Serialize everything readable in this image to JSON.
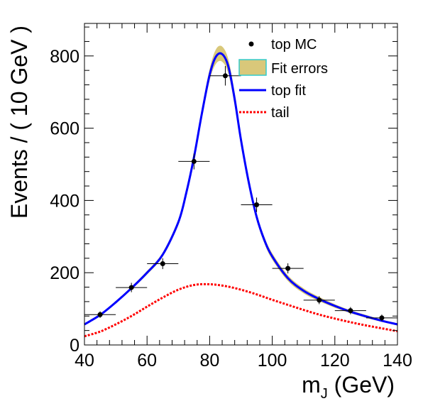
{
  "chart_data": {
    "type": "scatter",
    "title": "",
    "xlabel": "m",
    "xlabel_sub": "J",
    "xlabel_unit": " (GeV)",
    "ylabel": "Events / ( 10 GeV )",
    "xlim": [
      40,
      140
    ],
    "ylim": [
      0,
      890
    ],
    "x_ticks": [
      40,
      60,
      80,
      100,
      120,
      140
    ],
    "y_ticks": [
      0,
      200,
      400,
      600,
      800
    ],
    "grid": false,
    "legend_position": "top-right",
    "legend": [
      {
        "label": "top MC",
        "kind": "marker",
        "color": "#000000"
      },
      {
        "label": "Fit errors",
        "kind": "band",
        "color": "#d9c87a",
        "edge": "#33cccc"
      },
      {
        "label": "top fit",
        "kind": "line",
        "color": "#0000ff"
      },
      {
        "label": "tail",
        "kind": "dashed",
        "color": "#ff0000"
      }
    ],
    "series": [
      {
        "name": "top MC",
        "kind": "points",
        "x": [
          45,
          55,
          65,
          75,
          85,
          95,
          105,
          115,
          125,
          135
        ],
        "y": [
          84,
          159,
          225,
          508,
          745,
          388,
          212,
          124,
          95,
          75
        ],
        "xerr": 5,
        "yerr": [
          9,
          13,
          15,
          22,
          27,
          20,
          14,
          11,
          10,
          9
        ]
      },
      {
        "name": "top fit",
        "kind": "line",
        "x": [
          40,
          45,
          50,
          55,
          60,
          65,
          70,
          72.5,
          75,
          77.5,
          80,
          82,
          84,
          86,
          88,
          90,
          92.5,
          95,
          97.5,
          100,
          105,
          110,
          115,
          120,
          125,
          130,
          135,
          140
        ],
        "y": [
          57,
          83,
          118,
          157,
          200,
          250,
          340,
          420,
          520,
          640,
          748,
          798,
          805,
          770,
          680,
          568,
          450,
          355,
          290,
          245,
          185,
          150,
          127,
          108,
          92,
          79,
          67,
          57
        ]
      },
      {
        "name": "Fit errors",
        "kind": "band",
        "x": [
          40,
          45,
          50,
          55,
          60,
          65,
          70,
          72.5,
          75,
          77.5,
          80,
          82,
          84,
          86,
          88,
          90,
          92.5,
          95,
          97.5,
          100,
          105,
          110,
          115,
          120,
          125,
          130,
          135,
          140
        ],
        "low": [
          55,
          81,
          115,
          153,
          195,
          244,
          332,
          410,
          508,
          626,
          732,
          778,
          784,
          750,
          662,
          553,
          438,
          345,
          281,
          236,
          177,
          143,
          121,
          103,
          88,
          75,
          64,
          54
        ],
        "high": [
          59,
          85,
          121,
          161,
          205,
          256,
          348,
          430,
          532,
          654,
          764,
          818,
          826,
          790,
          698,
          583,
          462,
          365,
          299,
          254,
          193,
          157,
          133,
          113,
          96,
          83,
          70,
          60
        ]
      },
      {
        "name": "tail",
        "kind": "dashed",
        "x": [
          40,
          45,
          50,
          55,
          60,
          65,
          70,
          75,
          80,
          85,
          90,
          95,
          100,
          105,
          110,
          115,
          120,
          125,
          130,
          135,
          140
        ],
        "y": [
          24,
          37,
          57,
          80,
          106,
          131,
          153,
          166,
          168,
          163,
          153,
          140,
          125,
          111,
          97,
          84,
          73,
          63,
          54,
          46,
          38
        ]
      }
    ]
  }
}
